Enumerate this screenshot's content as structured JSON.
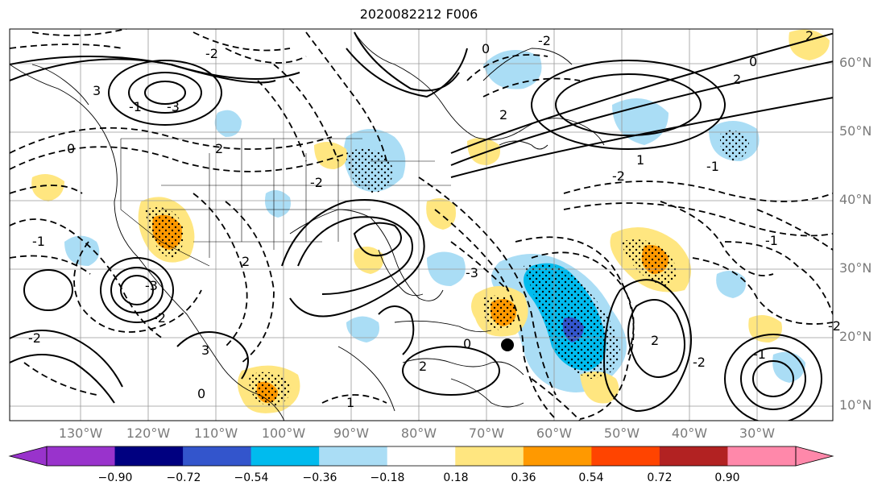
{
  "title": "2020082212 F006",
  "lat_labels": [
    "60°N",
    "50°N",
    "40°N",
    "30°N",
    "20°N",
    "10°N"
  ],
  "lon_labels": [
    "130°W",
    "120°W",
    "110°W",
    "100°W",
    "90°W",
    "80°W",
    "70°W",
    "60°W",
    "50°W",
    "40°W",
    "30°W"
  ],
  "colorbar": {
    "ticks": [
      "−0.90",
      "−0.72",
      "−0.54",
      "−0.36",
      "−0.18",
      "0.18",
      "0.36",
      "0.54",
      "0.72",
      "0.90"
    ],
    "colors": [
      "#9933cc",
      "#000080",
      "#3355cc",
      "#00bbee",
      "#aaddf5",
      "#ffffff",
      "#ffe680",
      "#ff9900",
      "#ff4400",
      "#b22222",
      "#ff88aa",
      "#ff88aa"
    ],
    "extend_low_color": "#9933cc",
    "extend_high_color": "#ff88aa"
  },
  "contour_labels": [
    "0",
    "2",
    "-2",
    "3",
    "-3",
    "-1",
    "1",
    "-3",
    "-2",
    "2",
    "0",
    "-1",
    "2",
    "-2",
    "-1",
    "0",
    "2",
    "-2",
    "-3",
    "-2",
    "2",
    "-1",
    "3",
    "1",
    "-2",
    "0",
    "2",
    "0",
    "-2",
    "-1",
    "2",
    "-2"
  ],
  "storm_marker": "filled-circle"
}
